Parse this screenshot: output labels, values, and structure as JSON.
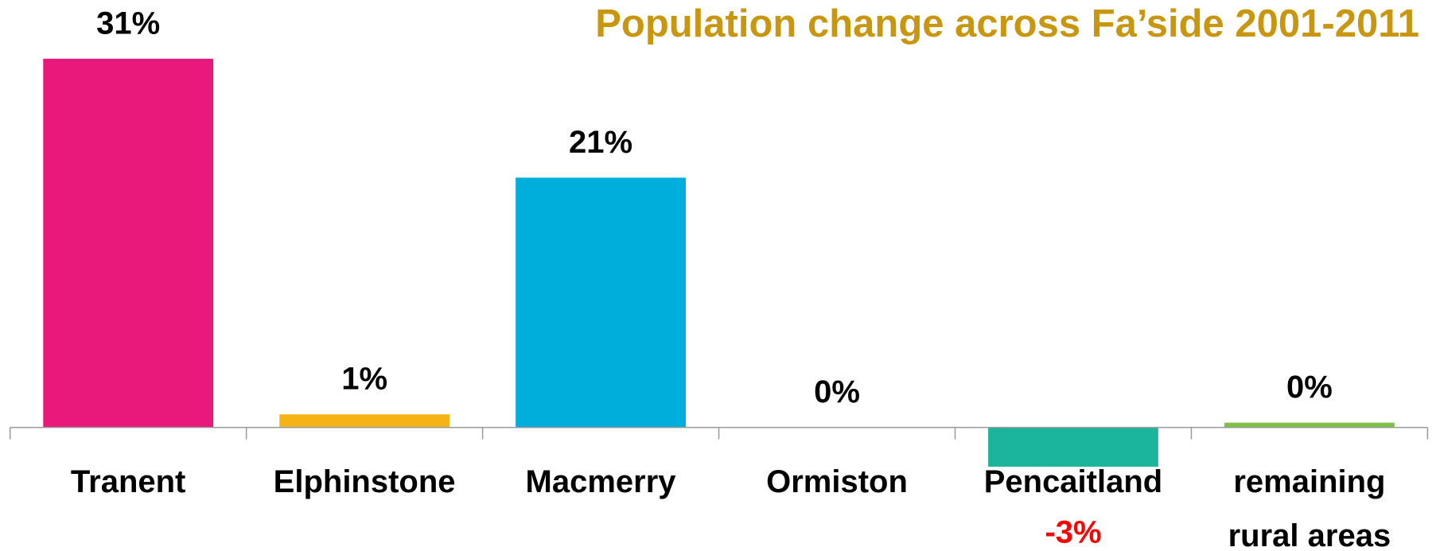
{
  "chart_data": {
    "type": "bar",
    "title": "Population change across Fa’side 2001-2011",
    "categories": [
      "Tranent",
      "Elphinstone",
      "Macmerry",
      "Ormiston",
      "Pencaitland",
      "remaining rural areas"
    ],
    "values": [
      31,
      1.1,
      21,
      0,
      -3.3,
      0.4
    ],
    "value_labels": [
      "31%",
      "1%",
      "21%",
      "0%",
      "-3%",
      "0%"
    ],
    "colors": [
      "#e8197a",
      "#f5b316",
      "#00aedb",
      null,
      "#1bb59c",
      "#7dc242"
    ],
    "ylim": [
      -5,
      35
    ]
  }
}
